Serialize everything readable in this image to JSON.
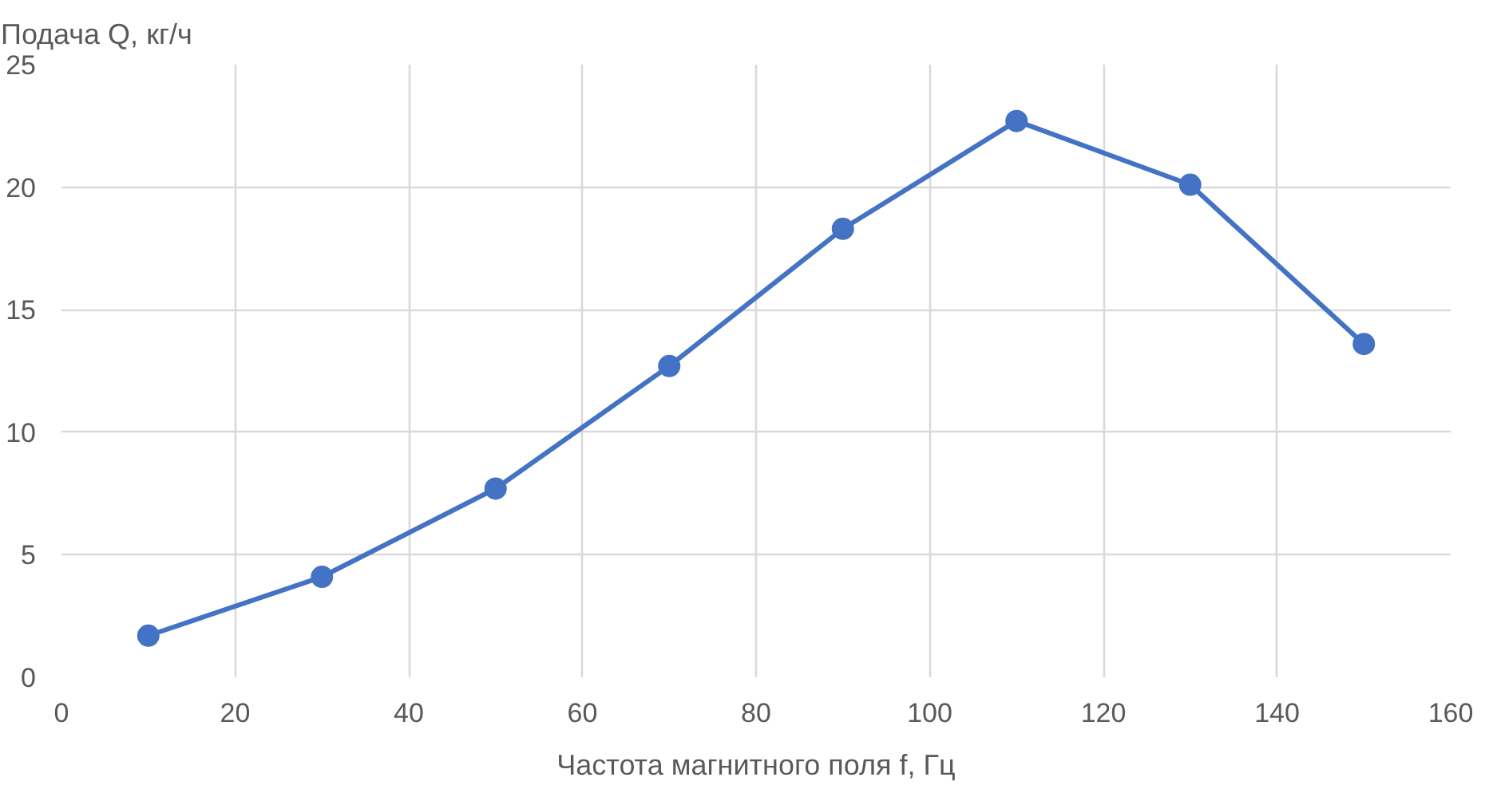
{
  "chart_data": {
    "type": "line",
    "xlabel": "Частота магнитного поля f, Гц",
    "ylabel": "Подача Q, кг/ч",
    "x": [
      10,
      30,
      50,
      70,
      90,
      110,
      130,
      150
    ],
    "series": [
      {
        "color": "#4472c4",
        "values": [
          1.7,
          4.1,
          7.7,
          12.7,
          18.3,
          22.7,
          20.1,
          13.6
        ]
      }
    ],
    "xlim": [
      0,
      160
    ],
    "xticks": [
      0,
      20,
      40,
      60,
      80,
      100,
      120,
      140,
      160
    ],
    "ylim": [
      0,
      25
    ],
    "yticks": [
      0,
      5,
      10,
      15,
      20,
      25
    ],
    "grid": true,
    "marker": "circle",
    "line_style": "solid"
  }
}
